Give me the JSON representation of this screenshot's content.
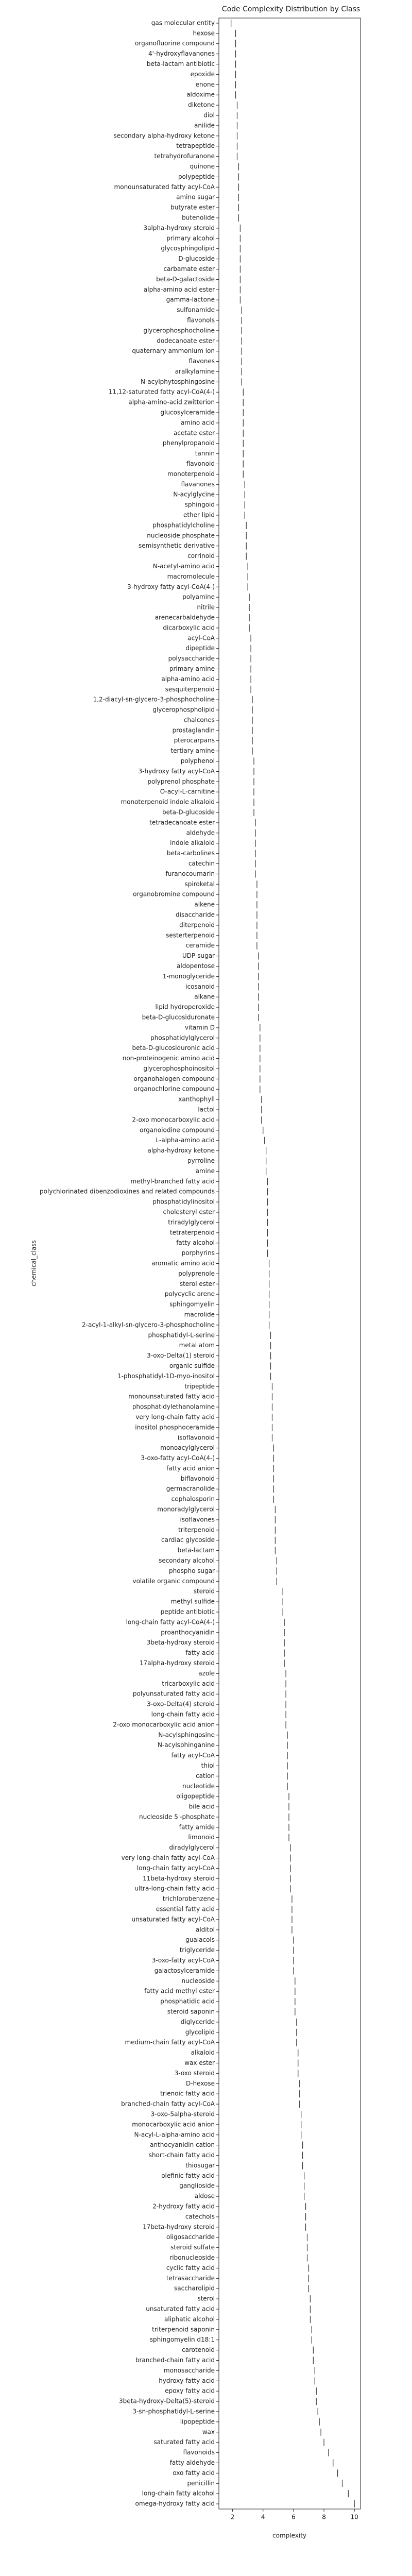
{
  "chart_data": {
    "type": "box",
    "title": "Code Complexity Distribution by Class",
    "x_label": "complexity",
    "y_label": "chemical_class",
    "color": "#333333",
    "xlim": [
      1.1,
      10.4
    ],
    "xticks": [
      2,
      4,
      6,
      8,
      10
    ],
    "categories": [
      "gas molecular entity",
      "hexose",
      "organofluorine compound",
      "4'-hydroxyflavanones",
      "beta-lactam antibiotic",
      "epoxide",
      "enone",
      "aldoxime",
      "diketone",
      "diol",
      "anilide",
      "secondary alpha-hydroxy ketone",
      "tetrapeptide",
      "tetrahydrofuranone",
      "quinone",
      "polypeptide",
      "monounsaturated fatty acyl-CoA",
      "amino sugar",
      "butyrate ester",
      "butenolide",
      "3alpha-hydroxy steroid",
      "primary alcohol",
      "glycosphingolipid",
      "D-glucoside",
      "carbamate ester",
      "beta-D-galactoside",
      "alpha-amino acid ester",
      "gamma-lactone",
      "sulfonamide",
      "flavonols",
      "glycerophosphocholine",
      "dodecanoate ester",
      "quaternary ammonium ion",
      "flavones",
      "aralkylamine",
      "N-acylphytosphingosine",
      "11,12-saturated fatty acyl-CoA(4-)",
      "alpha-amino-acid zwitterion",
      "glucosylceramide",
      "amino acid",
      "acetate ester",
      "phenylpropanoid",
      "tannin",
      "flavonoid",
      "monoterpenoid",
      "flavanones",
      "N-acylglycine",
      "sphingoid",
      "ether lipid",
      "phosphatidylcholine",
      "nucleoside phosphate",
      "semisynthetic derivative",
      "corrinoid",
      "N-acetyl-amino acid",
      "macromolecule",
      "3-hydroxy fatty acyl-CoA(4-)",
      "polyamine",
      "nitrile",
      "arenecarbaldehyde",
      "dicarboxylic acid",
      "acyl-CoA",
      "dipeptide",
      "polysaccharide",
      "primary amine",
      "alpha-amino acid",
      "sesquiterpenoid",
      "1,2-diacyl-sn-glycero-3-phosphocholine",
      "glycerophospholipid",
      "chalcones",
      "prostaglandin",
      "pterocarpans",
      "tertiary amine",
      "polyphenol",
      "3-hydroxy fatty acyl-CoA",
      "polyprenol phosphate",
      "O-acyl-L-carnitine",
      "monoterpenoid indole alkaloid",
      "beta-D-glucoside",
      "tetradecanoate ester",
      "aldehyde",
      "indole alkaloid",
      "beta-carbolines",
      "catechin",
      "furanocoumarin",
      "spiroketal",
      "organobromine compound",
      "alkene",
      "disaccharide",
      "diterpenoid",
      "sesterterpenoid",
      "ceramide",
      "UDP-sugar",
      "aldopentose",
      "1-monoglyceride",
      "icosanoid",
      "alkane",
      "lipid hydroperoxide",
      "beta-D-glucosiduronate",
      "vitamin D",
      "phosphatidylglycerol",
      "beta-D-glucosiduronic acid",
      "non-proteinogenic amino acid",
      "glycerophosphoinositol",
      "organohalogen compound",
      "organochlorine compound",
      "xanthophyll",
      "lactol",
      "2-oxo monocarboxylic acid",
      "organoiodine compound",
      "L-alpha-amino acid",
      "alpha-hydroxy ketone",
      "pyrroline",
      "amine",
      "methyl-branched fatty acid",
      "polychlorinated dibenzodioxines and related compounds",
      "phosphatidylinositol",
      "cholesteryl ester",
      "triradylglycerol",
      "tetraterpenoid",
      "fatty alcohol",
      "porphyrins",
      "aromatic amino acid",
      "polyprenole",
      "sterol ester",
      "polycyclic arene",
      "sphingomyelin",
      "macrolide",
      "2-acyl-1-alkyl-sn-glycero-3-phosphocholine",
      "phosphatidyl-L-serine",
      "metal atom",
      "3-oxo-Delta(1) steroid",
      "organic sulfide",
      "1-phosphatidyl-1D-myo-inositol",
      "tripeptide",
      "monounsaturated fatty acid",
      "phosphatidylethanolamine",
      "very long-chain fatty acid",
      "inositol phosphoceramide",
      "isoflavonoid",
      "monoacylglycerol",
      "3-oxo-fatty acyl-CoA(4-)",
      "fatty acid anion",
      "biflavonoid",
      "germacranolide",
      "cephalosporin",
      "monoradylglycerol",
      "isoflavones",
      "triterpenoid",
      "cardiac glycoside",
      "beta-lactam",
      "secondary alcohol",
      "phospho sugar",
      "volatile organic compound",
      "steroid",
      "methyl sulfide",
      "peptide antibiotic",
      "long-chain fatty acyl-CoA(4-)",
      "proanthocyanidin",
      "3beta-hydroxy steroid",
      "fatty acid",
      "17alpha-hydroxy steroid",
      "azole",
      "tricarboxylic acid",
      "polyunsaturated fatty acid",
      "3-oxo-Delta(4) steroid",
      "long-chain fatty acid",
      "2-oxo monocarboxylic acid anion",
      "N-acylsphingosine",
      "N-acylsphinganine",
      "fatty acyl-CoA",
      "thiol",
      "cation",
      "nucleotide",
      "oligopeptide",
      "bile acid",
      "nucleoside 5'-phosphate",
      "fatty amide",
      "limonoid",
      "diradylglycerol",
      "very long-chain fatty acyl-CoA",
      "long-chain fatty acyl-CoA",
      "11beta-hydroxy steroid",
      "ultra-long-chain fatty acid",
      "trichlorobenzene",
      "essential fatty acid",
      "unsaturated fatty acyl-CoA",
      "alditol",
      "guaiacols",
      "triglyceride",
      "3-oxo-fatty acyl-CoA",
      "galactosylceramide",
      "nucleoside",
      "fatty acid methyl ester",
      "phosphatidic acid",
      "steroid saponin",
      "diglyceride",
      "glycolipid",
      "medium-chain fatty acyl-CoA",
      "alkaloid",
      "wax ester",
      "3-oxo steroid",
      "D-hexose",
      "trienoic fatty acid",
      "branched-chain fatty acyl-CoA",
      "3-oxo-5alpha-steroid",
      "monocarboxylic acid anion",
      "N-acyl-L-alpha-amino acid",
      "anthocyanidin cation",
      "short-chain fatty acid",
      "thiosugar",
      "olefinic fatty acid",
      "ganglioside",
      "aldose",
      "2-hydroxy fatty acid",
      "catechols",
      "17beta-hydroxy steroid",
      "oligosaccharide",
      "steroid sulfate",
      "ribonucleoside",
      "cyclic fatty acid",
      "tetrasaccharide",
      "saccharolipid",
      "sterol",
      "unsaturated fatty acid",
      "aliphatic alcohol",
      "triterpenoid saponin",
      "sphingomyelin d18:1",
      "carotenoid",
      "branched-chain fatty acid",
      "monosaccharide",
      "hydroxy fatty acid",
      "epoxy fatty acid",
      "3beta-hydroxy-Delta(5)-steroid",
      "3-sn-phosphatidyl-L-serine",
      "lipopeptide",
      "wax",
      "saturated fatty acid",
      "flavonoids",
      "fatty aldehyde",
      "oxo fatty acid",
      "penicillin",
      "long-chain fatty alcohol",
      "omega-hydroxy fatty acid"
    ],
    "values": [
      1.9,
      2.2,
      2.2,
      2.2,
      2.2,
      2.2,
      2.2,
      2.2,
      2.3,
      2.3,
      2.3,
      2.3,
      2.3,
      2.3,
      2.4,
      2.4,
      2.4,
      2.4,
      2.4,
      2.4,
      2.5,
      2.5,
      2.5,
      2.5,
      2.5,
      2.5,
      2.5,
      2.5,
      2.6,
      2.6,
      2.6,
      2.6,
      2.6,
      2.6,
      2.6,
      2.6,
      2.7,
      2.7,
      2.7,
      2.7,
      2.7,
      2.7,
      2.7,
      2.7,
      2.7,
      2.8,
      2.8,
      2.8,
      2.8,
      2.9,
      2.9,
      2.9,
      2.9,
      3.0,
      3.0,
      3.0,
      3.1,
      3.1,
      3.1,
      3.1,
      3.2,
      3.2,
      3.2,
      3.2,
      3.2,
      3.2,
      3.3,
      3.3,
      3.3,
      3.3,
      3.3,
      3.3,
      3.4,
      3.4,
      3.4,
      3.4,
      3.4,
      3.4,
      3.5,
      3.5,
      3.5,
      3.5,
      3.5,
      3.5,
      3.6,
      3.6,
      3.6,
      3.6,
      3.6,
      3.6,
      3.6,
      3.7,
      3.7,
      3.7,
      3.7,
      3.7,
      3.7,
      3.7,
      3.8,
      3.8,
      3.8,
      3.8,
      3.8,
      3.8,
      3.8,
      3.9,
      3.9,
      3.9,
      4.0,
      4.1,
      4.2,
      4.2,
      4.2,
      4.3,
      4.3,
      4.3,
      4.3,
      4.3,
      4.3,
      4.3,
      4.3,
      4.4,
      4.4,
      4.4,
      4.4,
      4.4,
      4.4,
      4.4,
      4.5,
      4.5,
      4.5,
      4.5,
      4.5,
      4.6,
      4.6,
      4.6,
      4.6,
      4.6,
      4.6,
      4.7,
      4.7,
      4.7,
      4.7,
      4.7,
      4.7,
      4.8,
      4.8,
      4.8,
      4.8,
      4.8,
      4.9,
      4.9,
      4.9,
      5.3,
      5.3,
      5.3,
      5.4,
      5.4,
      5.4,
      5.4,
      5.4,
      5.5,
      5.5,
      5.5,
      5.5,
      5.5,
      5.5,
      5.6,
      5.6,
      5.6,
      5.6,
      5.6,
      5.6,
      5.7,
      5.7,
      5.7,
      5.7,
      5.7,
      5.8,
      5.8,
      5.8,
      5.8,
      5.8,
      5.9,
      5.9,
      5.9,
      5.9,
      6.0,
      6.0,
      6.0,
      6.0,
      6.1,
      6.1,
      6.1,
      6.1,
      6.2,
      6.2,
      6.2,
      6.3,
      6.3,
      6.3,
      6.4,
      6.4,
      6.4,
      6.5,
      6.5,
      6.5,
      6.6,
      6.6,
      6.6,
      6.7,
      6.7,
      6.7,
      6.8,
      6.8,
      6.8,
      6.9,
      6.9,
      6.9,
      7.0,
      7.0,
      7.0,
      7.1,
      7.1,
      7.1,
      7.2,
      7.2,
      7.3,
      7.3,
      7.4,
      7.4,
      7.5,
      7.5,
      7.6,
      7.7,
      7.8,
      8.0,
      8.3,
      8.6,
      8.9,
      9.2,
      9.6,
      10.0
    ]
  }
}
